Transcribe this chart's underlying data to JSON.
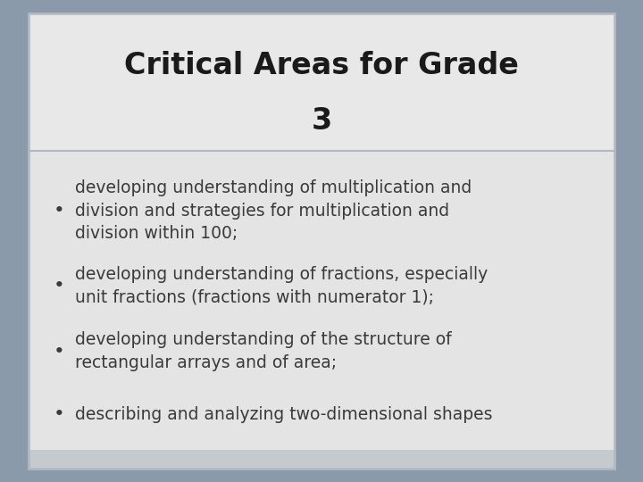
{
  "title_line1": "Critical Areas for Grade",
  "title_line2": "3",
  "title_fontsize": 24,
  "title_fontweight": "bold",
  "title_color": "#1a1a1a",
  "title_bg_color": "#e8e8e8",
  "body_bg_color": "#e4e4e4",
  "outer_bg_color": "#8a9aaa",
  "border_color": "#b0b8c0",
  "divider_color": "#b0b8c0",
  "bullet_color": "#3a3a3a",
  "bullet_fontsize": 13.5,
  "bullets": [
    "developing understanding of multiplication and\ndivision and strategies for multiplication and\ndivision within 100;",
    "developing understanding of fractions, especially\nunit fractions (fractions with numerator 1);",
    "developing understanding of the structure of\nrectangular arrays and of area;",
    "describing and analyzing two-dimensional shapes"
  ],
  "fig_width": 7.2,
  "fig_height": 5.4,
  "dpi": 100
}
